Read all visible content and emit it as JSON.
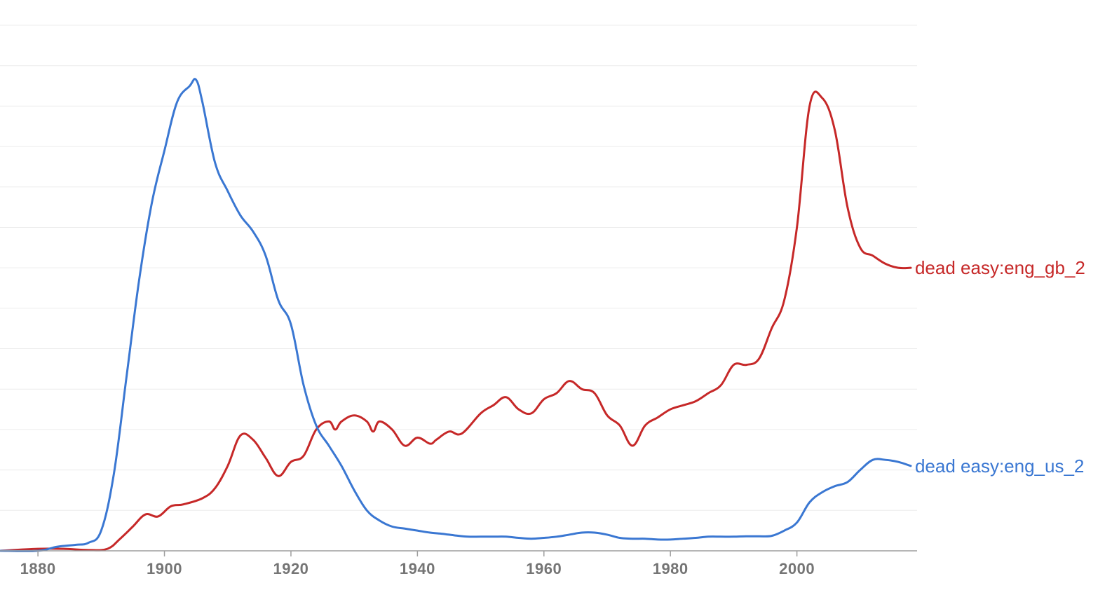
{
  "chart_data": {
    "type": "line",
    "title": "",
    "xlabel": "",
    "ylabel": "",
    "xlim": [
      1874,
      2019
    ],
    "ylim": [
      0,
      13
    ],
    "x_ticks": [
      1880,
      1900,
      1920,
      1940,
      1960,
      1980,
      2000
    ],
    "tick_labels": [
      "1880",
      "1900",
      "1920",
      "1940",
      "1960",
      "1980",
      "2000"
    ],
    "y_grid": [
      1,
      2,
      3,
      4,
      5,
      6,
      7,
      8,
      9,
      10,
      11,
      12,
      13
    ],
    "grid": true,
    "legend": "end-of-line labels",
    "series": [
      {
        "name": "dead easy:eng_gb_2",
        "color": "#c62828",
        "x": [
          1874,
          1880,
          1884,
          1888,
          1891,
          1893,
          1895,
          1897,
          1899,
          1901,
          1903,
          1906,
          1908,
          1910,
          1912,
          1914,
          1916,
          1918,
          1920,
          1922,
          1924,
          1926,
          1927,
          1928,
          1930,
          1932,
          1933,
          1934,
          1936,
          1938,
          1940,
          1942,
          1943,
          1945,
          1947,
          1950,
          1952,
          1954,
          1956,
          1958,
          1960,
          1962,
          1964,
          1966,
          1968,
          1970,
          1972,
          1974,
          1976,
          1978,
          1980,
          1982,
          1984,
          1986,
          1988,
          1990,
          1992,
          1994,
          1996,
          1998,
          2000,
          2002,
          2004,
          2006,
          2008,
          2010,
          2012,
          2014,
          2016,
          2018
        ],
        "y": [
          0.0,
          0.05,
          0.05,
          0.02,
          0.05,
          0.3,
          0.6,
          0.9,
          0.85,
          1.1,
          1.15,
          1.3,
          1.55,
          2.1,
          2.85,
          2.75,
          2.3,
          1.85,
          2.2,
          2.35,
          3.0,
          3.2,
          3.0,
          3.2,
          3.35,
          3.2,
          2.95,
          3.2,
          3.0,
          2.6,
          2.8,
          2.65,
          2.75,
          2.95,
          2.9,
          3.4,
          3.6,
          3.8,
          3.5,
          3.4,
          3.75,
          3.9,
          4.2,
          4.0,
          3.9,
          3.35,
          3.1,
          2.6,
          3.1,
          3.3,
          3.5,
          3.6,
          3.7,
          3.9,
          4.1,
          4.6,
          4.6,
          4.75,
          5.5,
          6.2,
          8.0,
          11.0,
          11.2,
          10.4,
          8.5,
          7.5,
          7.3,
          7.1,
          7.0,
          7.0
        ],
        "label": "dead easy:eng_gb_2"
      },
      {
        "name": "dead easy:eng_us_2",
        "color": "#3a77d2",
        "x": [
          1874,
          1880,
          1883,
          1886,
          1888,
          1890,
          1892,
          1894,
          1896,
          1898,
          1900,
          1902,
          1904,
          1905,
          1906,
          1908,
          1910,
          1912,
          1914,
          1916,
          1918,
          1920,
          1922,
          1924,
          1926,
          1928,
          1930,
          1932,
          1934,
          1936,
          1938,
          1940,
          1942,
          1944,
          1946,
          1948,
          1950,
          1952,
          1954,
          1956,
          1958,
          1960,
          1962,
          1964,
          1966,
          1968,
          1970,
          1972,
          1974,
          1976,
          1978,
          1980,
          1982,
          1984,
          1986,
          1988,
          1990,
          1992,
          1994,
          1996,
          1998,
          2000,
          2002,
          2004,
          2006,
          2008,
          2010,
          2012,
          2014,
          2016,
          2018
        ],
        "y": [
          0.0,
          0.0,
          0.1,
          0.15,
          0.2,
          0.5,
          1.9,
          4.3,
          6.7,
          8.6,
          9.9,
          11.1,
          11.5,
          11.65,
          11.1,
          9.6,
          8.9,
          8.3,
          7.9,
          7.3,
          6.2,
          5.6,
          4.1,
          3.1,
          2.6,
          2.1,
          1.5,
          1.0,
          0.75,
          0.6,
          0.55,
          0.5,
          0.45,
          0.42,
          0.38,
          0.35,
          0.35,
          0.35,
          0.35,
          0.32,
          0.3,
          0.32,
          0.35,
          0.4,
          0.45,
          0.45,
          0.4,
          0.32,
          0.3,
          0.3,
          0.28,
          0.28,
          0.3,
          0.32,
          0.35,
          0.35,
          0.35,
          0.36,
          0.36,
          0.37,
          0.5,
          0.7,
          1.2,
          1.45,
          1.6,
          1.7,
          2.0,
          2.25,
          2.25,
          2.2,
          2.1
        ],
        "label": "dead easy:eng_us_2"
      }
    ]
  }
}
